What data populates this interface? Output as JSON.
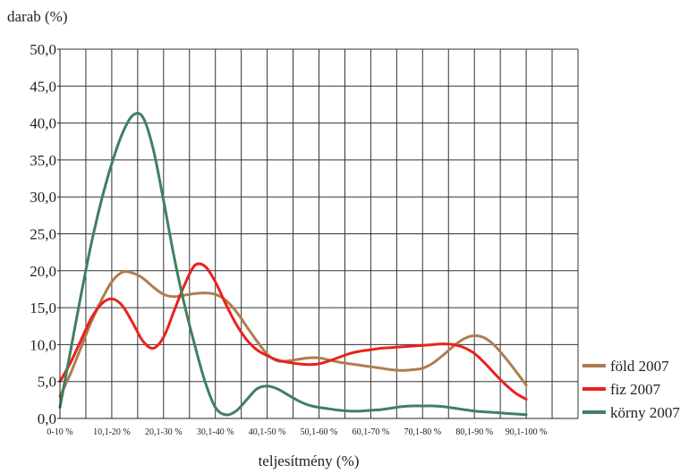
{
  "chart_data": {
    "type": "line",
    "ylabel": "darab (%)",
    "xlabel": "teljesítmény (%)",
    "ylim": [
      0,
      50
    ],
    "yticks": [
      "0,0",
      "5,0",
      "10,0",
      "15,0",
      "20,0",
      "25,0",
      "30,0",
      "35,0",
      "40,0",
      "45,0",
      "50,0"
    ],
    "xlim": [
      0,
      100
    ],
    "categories": [
      "0-10 %",
      "10,1-20 %",
      "20,1-30 %",
      "30,1-40 %",
      "40,1-50 %",
      "50,1-60 %",
      "60,1-70 %",
      "70,1-80 %",
      "80,1-90 %",
      "90,1-100 %"
    ],
    "grid": true,
    "legend_position": "right",
    "series": [
      {
        "name": "föld 2007",
        "color": "#b07c4f",
        "x": [
          0,
          2,
          4,
          6,
          8,
          10,
          12,
          14,
          16,
          18,
          20,
          22,
          24,
          26,
          28,
          30,
          32,
          34,
          36,
          38,
          40,
          42,
          44,
          46,
          48,
          50,
          52,
          54,
          56,
          58,
          60,
          62,
          64,
          66,
          68,
          70,
          72,
          74,
          76,
          78,
          80,
          82,
          84,
          86,
          88,
          90
        ],
        "y": [
          3.0,
          6.0,
          9.5,
          13.0,
          16.0,
          18.5,
          19.8,
          19.7,
          19.0,
          17.8,
          16.8,
          16.5,
          16.7,
          16.9,
          17.0,
          16.8,
          16.0,
          14.5,
          12.5,
          10.5,
          8.7,
          7.8,
          7.8,
          8.0,
          8.2,
          8.2,
          7.9,
          7.6,
          7.4,
          7.2,
          7.0,
          6.8,
          6.6,
          6.5,
          6.6,
          6.8,
          7.5,
          8.6,
          9.8,
          10.8,
          11.2,
          10.9,
          9.8,
          8.2,
          6.4,
          4.5
        ]
      },
      {
        "name": "fiz 2007",
        "color": "#e8231c",
        "x": [
          0,
          2,
          4,
          6,
          8,
          10,
          12,
          14,
          16,
          18,
          20,
          22,
          24,
          26,
          28,
          30,
          32,
          34,
          36,
          38,
          40,
          42,
          44,
          46,
          48,
          50,
          52,
          54,
          56,
          58,
          60,
          62,
          64,
          66,
          68,
          70,
          72,
          74,
          76,
          78,
          80,
          82,
          84,
          86,
          88,
          90
        ],
        "y": [
          5.0,
          7.5,
          10.5,
          13.5,
          15.5,
          16.2,
          15.3,
          13.0,
          10.5,
          9.5,
          11.0,
          14.5,
          18.0,
          20.7,
          20.6,
          18.5,
          15.5,
          12.8,
          10.7,
          9.3,
          8.5,
          7.9,
          7.6,
          7.4,
          7.3,
          7.4,
          7.8,
          8.3,
          8.8,
          9.1,
          9.3,
          9.5,
          9.6,
          9.7,
          9.8,
          9.9,
          10.0,
          10.1,
          10.0,
          9.6,
          8.8,
          7.5,
          6.0,
          4.6,
          3.4,
          2.6
        ]
      },
      {
        "name": "körny 2007",
        "color": "#3f8060",
        "x": [
          0,
          2,
          4,
          6,
          8,
          10,
          12,
          14,
          16,
          18,
          20,
          22,
          24,
          26,
          28,
          30,
          32,
          34,
          36,
          38,
          40,
          42,
          44,
          46,
          48,
          50,
          52,
          54,
          56,
          58,
          60,
          62,
          64,
          66,
          68,
          70,
          72,
          74,
          76,
          78,
          80,
          82,
          84,
          86,
          88,
          90
        ],
        "y": [
          1.5,
          9.0,
          16.5,
          23.5,
          29.5,
          34.5,
          38.5,
          41.0,
          40.8,
          36.5,
          29.5,
          22.0,
          15.5,
          10.0,
          5.0,
          1.5,
          0.5,
          1.0,
          2.5,
          4.0,
          4.4,
          4.0,
          3.2,
          2.4,
          1.8,
          1.5,
          1.3,
          1.1,
          1.0,
          1.0,
          1.1,
          1.2,
          1.4,
          1.6,
          1.7,
          1.7,
          1.7,
          1.6,
          1.4,
          1.2,
          1.0,
          0.9,
          0.8,
          0.7,
          0.6,
          0.5
        ]
      }
    ]
  }
}
